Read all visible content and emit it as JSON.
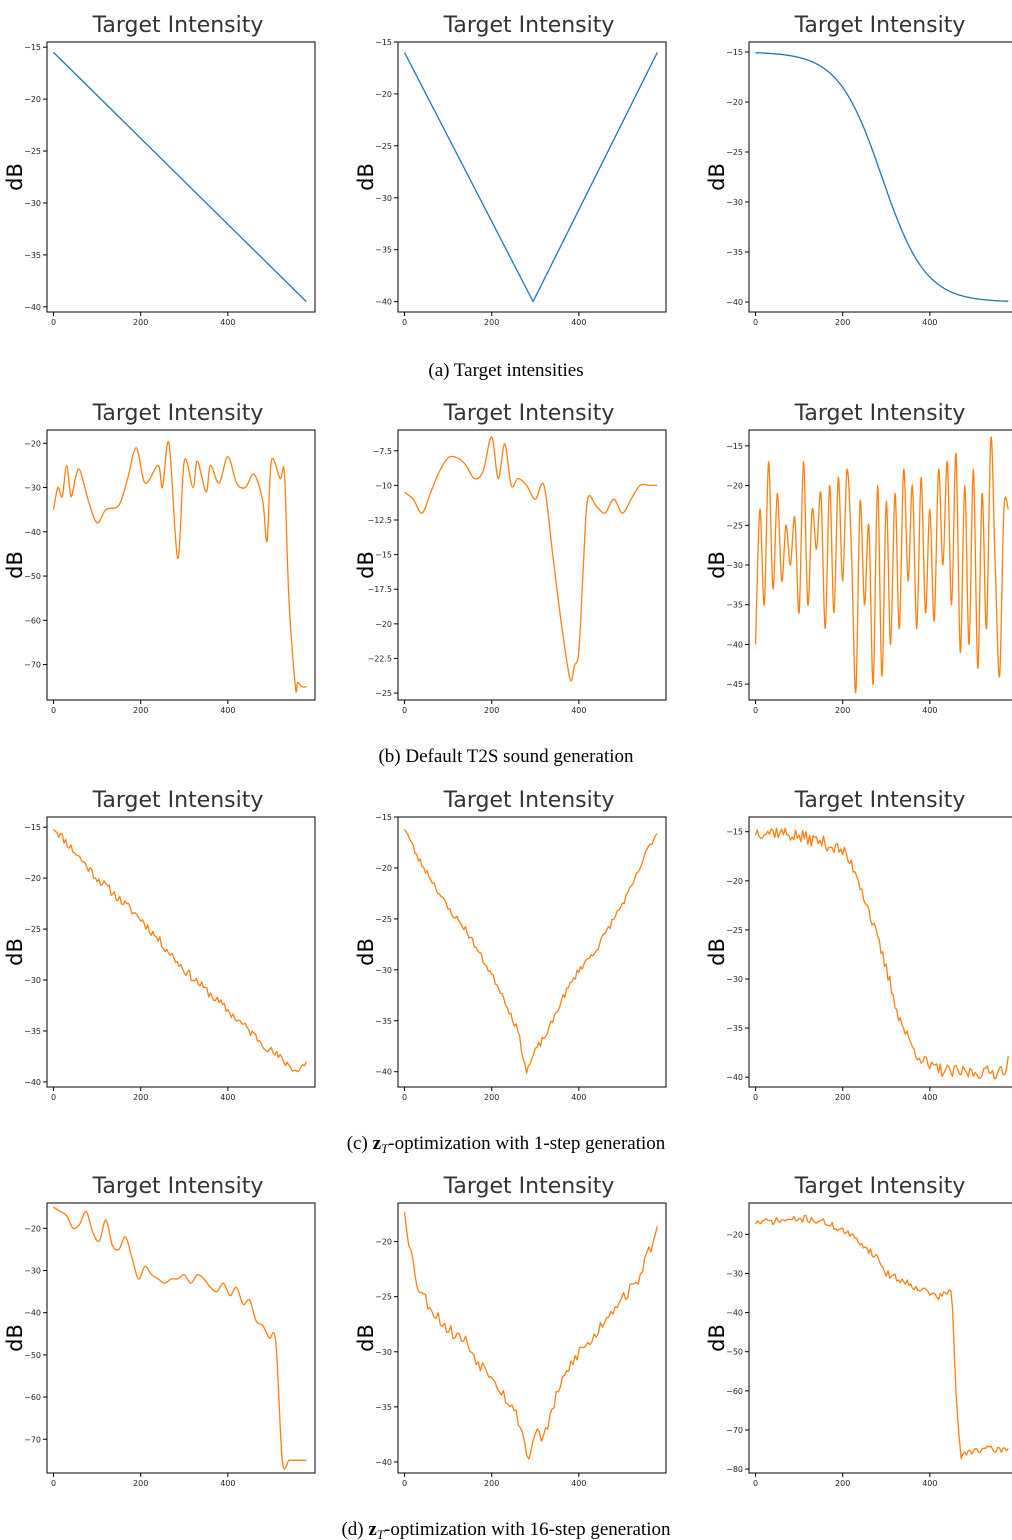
{
  "colors": {
    "target": "#1f77b4",
    "generated": "#ff7f0e"
  },
  "captions": [
    {
      "text": "(a) Target intensities"
    },
    {
      "text": "(b) Default T2S sound generation"
    },
    {
      "prefix": "(c) ",
      "sym": "z",
      "sub": "T",
      "rest": "-optimization with 1-step generation"
    },
    {
      "prefix": "(d) ",
      "sym": "z",
      "sub": "T",
      "rest": "-optimization with 16-step generation"
    }
  ],
  "chart_data": [
    {
      "type": "line",
      "row": 0,
      "col": 0,
      "title": "Target Intensity",
      "ylabel": "dB",
      "xlim": [
        -15,
        600
      ],
      "ylim": [
        -40.5,
        -14.5
      ],
      "xticks": [
        0,
        200,
        400
      ],
      "yticks": [
        -15,
        -20,
        -25,
        -30,
        -35,
        -40
      ],
      "series": [
        {
          "color_key": "target",
          "shape": "linear",
          "x": [
            0,
            580
          ],
          "y": [
            -15.5,
            -39.5
          ]
        }
      ]
    },
    {
      "type": "line",
      "row": 0,
      "col": 1,
      "title": "Target Intensity",
      "ylabel": "dB",
      "xlim": [
        -15,
        600
      ],
      "ylim": [
        -41,
        -15
      ],
      "xticks": [
        0,
        200,
        400
      ],
      "yticks": [
        -15,
        -20,
        -25,
        -30,
        -35,
        -40
      ],
      "series": [
        {
          "color_key": "target",
          "shape": "linear",
          "x": [
            0,
            295,
            580
          ],
          "y": [
            -16,
            -40,
            -16
          ]
        }
      ]
    },
    {
      "type": "line",
      "row": 0,
      "col": 2,
      "title": "Target Intensity",
      "ylabel": "dB",
      "xlim": [
        -15,
        600
      ],
      "ylim": [
        -41,
        -14
      ],
      "xticks": [
        0,
        200,
        400
      ],
      "yticks": [
        -15,
        -20,
        -25,
        -30,
        -35,
        -40
      ],
      "series": [
        {
          "color_key": "target",
          "shape": "sigmoid",
          "x0": 0,
          "x1": 580,
          "xmid": 290,
          "scale": 50,
          "ytop": -15,
          "ybottom": -40
        }
      ]
    },
    {
      "type": "line",
      "row": 1,
      "col": 0,
      "title": "Target Intensity",
      "ylabel": "dB",
      "xlim": [
        -15,
        600
      ],
      "ylim": [
        -78,
        -17
      ],
      "xticks": [
        0,
        200,
        400
      ],
      "yticks": [
        -20,
        -30,
        -40,
        -50,
        -60,
        -70
      ],
      "series": [
        {
          "color_key": "generated",
          "shape": "smooth",
          "x": [
            0,
            10,
            20,
            30,
            40,
            50,
            60,
            80,
            100,
            120,
            150,
            170,
            190,
            210,
            240,
            250,
            265,
            285,
            300,
            320,
            330,
            350,
            360,
            380,
            400,
            420,
            440,
            460,
            480,
            490,
            500,
            520,
            530,
            540,
            555,
            560,
            570,
            580
          ],
          "y": [
            -35,
            -30,
            -32,
            -25,
            -32,
            -28,
            -26,
            -33,
            -38,
            -35,
            -34,
            -28,
            -21,
            -29,
            -25,
            -30,
            -20,
            -46,
            -24,
            -30,
            -24,
            -31,
            -25,
            -29,
            -23,
            -29,
            -30,
            -27,
            -33,
            -42,
            -24,
            -28,
            -27,
            -55,
            -75,
            -74,
            -75,
            -75
          ]
        }
      ]
    },
    {
      "type": "line",
      "row": 1,
      "col": 1,
      "title": "Target Intensity",
      "ylabel": "dB",
      "xlim": [
        -15,
        600
      ],
      "ylim": [
        -25.5,
        -6
      ],
      "xticks": [
        0,
        200,
        400
      ],
      "yticks": [
        -7.5,
        -10,
        -12.5,
        -15,
        -17.5,
        -20,
        -22.5,
        -25
      ],
      "series": [
        {
          "color_key": "generated",
          "shape": "smooth",
          "x": [
            0,
            20,
            40,
            60,
            80,
            100,
            120,
            140,
            160,
            180,
            200,
            215,
            230,
            245,
            260,
            280,
            300,
            320,
            340,
            360,
            380,
            390,
            400,
            410,
            420,
            440,
            460,
            480,
            500,
            520,
            540,
            560,
            580
          ],
          "y": [
            -10.5,
            -11,
            -12,
            -10.5,
            -9,
            -8,
            -8,
            -8.5,
            -9.5,
            -9,
            -6.5,
            -9.5,
            -7,
            -10,
            -9.5,
            -10,
            -11,
            -10,
            -15,
            -20,
            -24,
            -23,
            -22,
            -16,
            -11,
            -11.5,
            -12,
            -11,
            -12,
            -11,
            -10,
            -10,
            -10
          ]
        }
      ]
    },
    {
      "type": "line",
      "row": 1,
      "col": 2,
      "title": "Target Intensity",
      "ylabel": "dB",
      "xlim": [
        -15,
        600
      ],
      "ylim": [
        -47,
        -13
      ],
      "xticks": [
        0,
        200,
        400
      ],
      "yticks": [
        -15,
        -20,
        -25,
        -30,
        -35,
        -40,
        -45
      ],
      "series": [
        {
          "color_key": "generated",
          "shape": "smooth",
          "x": [
            0,
            10,
            20,
            30,
            40,
            50,
            60,
            70,
            80,
            90,
            100,
            110,
            120,
            130,
            140,
            150,
            160,
            170,
            180,
            190,
            200,
            210,
            220,
            230,
            240,
            250,
            260,
            270,
            280,
            290,
            300,
            310,
            320,
            330,
            340,
            350,
            360,
            370,
            380,
            390,
            400,
            410,
            420,
            430,
            440,
            450,
            460,
            470,
            480,
            490,
            500,
            510,
            520,
            530,
            540,
            550,
            560,
            570,
            580
          ],
          "y": [
            -40,
            -23,
            -35,
            -17,
            -33,
            -21,
            -32,
            -25,
            -30,
            -24,
            -36,
            -17,
            -35,
            -23,
            -28,
            -21,
            -38,
            -20,
            -36,
            -19,
            -32,
            -18,
            -28,
            -46,
            -22,
            -35,
            -25,
            -45,
            -20,
            -44,
            -22,
            -40,
            -21,
            -38,
            -18,
            -32,
            -20,
            -38,
            -19,
            -36,
            -23,
            -37,
            -18,
            -30,
            -17,
            -35,
            -16,
            -41,
            -20,
            -40,
            -18,
            -43,
            -21,
            -38,
            -14,
            -30,
            -44,
            -23,
            -23
          ]
        }
      ]
    },
    {
      "type": "line",
      "row": 2,
      "col": 0,
      "title": "Target Intensity",
      "ylabel": "dB",
      "xlim": [
        -15,
        600
      ],
      "ylim": [
        -40.5,
        -14
      ],
      "xticks": [
        0,
        200,
        400
      ],
      "yticks": [
        -15,
        -20,
        -25,
        -30,
        -35,
        -40
      ],
      "series": [
        {
          "color_key": "generated",
          "shape": "noisy",
          "x0": 0,
          "x1": 580,
          "n": 145,
          "amp": 0.45,
          "seed": 11,
          "kx": [
            0,
            20,
            40,
            60,
            100,
            200,
            300,
            400,
            500,
            560,
            580
          ],
          "ky": [
            -15,
            -16,
            -17,
            -18,
            -20,
            -24,
            -29,
            -33,
            -37,
            -39,
            -38
          ]
        }
      ]
    },
    {
      "type": "line",
      "row": 2,
      "col": 1,
      "title": "Target Intensity",
      "ylabel": "dB",
      "xlim": [
        -15,
        600
      ],
      "ylim": [
        -41.5,
        -15
      ],
      "xticks": [
        0,
        200,
        400
      ],
      "yticks": [
        -15,
        -20,
        -25,
        -30,
        -35,
        -40
      ],
      "series": [
        {
          "color_key": "generated",
          "shape": "noisy",
          "x0": 0,
          "x1": 580,
          "n": 145,
          "amp": 0.35,
          "seed": 23,
          "kx": [
            0,
            30,
            60,
            100,
            140,
            180,
            220,
            260,
            280,
            300,
            330,
            360,
            400,
            440,
            480,
            520,
            560,
            580
          ],
          "ky": [
            -16,
            -19,
            -21,
            -24,
            -26,
            -29,
            -32,
            -36,
            -40,
            -38,
            -36,
            -33,
            -30,
            -28,
            -25,
            -22,
            -18,
            -16.5
          ]
        }
      ]
    },
    {
      "type": "line",
      "row": 2,
      "col": 2,
      "title": "Target Intensity",
      "ylabel": "dB",
      "xlim": [
        -15,
        600
      ],
      "ylim": [
        -41,
        -13.5
      ],
      "xticks": [
        0,
        200,
        400
      ],
      "yticks": [
        -15,
        -20,
        -25,
        -30,
        -35,
        -40
      ],
      "series": [
        {
          "color_key": "generated",
          "shape": "noisy",
          "x0": 0,
          "x1": 580,
          "n": 145,
          "amp": 0.7,
          "seed": 37,
          "kx": [
            0,
            50,
            100,
            150,
            200,
            230,
            260,
            300,
            330,
            360,
            400,
            450,
            500,
            550,
            575,
            580
          ],
          "ky": [
            -15,
            -15,
            -15.5,
            -16,
            -17,
            -19,
            -23,
            -29,
            -34,
            -37,
            -39,
            -39.5,
            -39.5,
            -39.5,
            -39,
            -38
          ]
        }
      ]
    },
    {
      "type": "line",
      "row": 3,
      "col": 0,
      "title": "Target Intensity",
      "ylabel": "dB",
      "xlim": [
        -15,
        600
      ],
      "ylim": [
        -78,
        -14
      ],
      "xticks": [
        0,
        200,
        400
      ],
      "yticks": [
        -20,
        -30,
        -40,
        -50,
        -60,
        -70
      ],
      "series": [
        {
          "color_key": "generated",
          "shape": "smooth",
          "x": [
            0,
            15,
            30,
            45,
            60,
            75,
            90,
            105,
            120,
            135,
            150,
            165,
            180,
            195,
            210,
            225,
            240,
            255,
            270,
            285,
            300,
            315,
            330,
            345,
            360,
            375,
            390,
            405,
            420,
            435,
            450,
            465,
            480,
            495,
            510,
            525,
            540,
            550,
            560,
            570,
            580
          ],
          "y": [
            -15,
            -16,
            -17,
            -20,
            -19,
            -16,
            -21,
            -23,
            -18,
            -24,
            -25,
            -22,
            -27,
            -32,
            -29,
            -31,
            -32,
            -33,
            -32,
            -32,
            -31,
            -33,
            -31,
            -32,
            -34,
            -35,
            -33,
            -36,
            -34,
            -38,
            -37,
            -42,
            -43,
            -46,
            -47,
            -75,
            -75,
            -75,
            -75,
            -75,
            -75
          ]
        }
      ]
    },
    {
      "type": "line",
      "row": 3,
      "col": 1,
      "title": "Target Intensity",
      "ylabel": "dB",
      "xlim": [
        -15,
        600
      ],
      "ylim": [
        -41,
        -16.5
      ],
      "xticks": [
        0,
        200,
        400
      ],
      "yticks": [
        -20,
        -25,
        -30,
        -35,
        -40
      ],
      "series": [
        {
          "color_key": "generated",
          "shape": "noisy",
          "x0": 0,
          "x1": 580,
          "n": 120,
          "amp": 0.6,
          "seed": 53,
          "kx": [
            0,
            10,
            30,
            60,
            100,
            140,
            170,
            200,
            230,
            260,
            275,
            285,
            300,
            320,
            340,
            370,
            400,
            430,
            460,
            500,
            530,
            560,
            580
          ],
          "ky": [
            -17,
            -20,
            -24,
            -26,
            -28,
            -29,
            -31,
            -32,
            -34,
            -36,
            -38,
            -40,
            -37,
            -38,
            -35,
            -32,
            -30,
            -29,
            -27,
            -25,
            -24,
            -21,
            -19
          ]
        }
      ]
    },
    {
      "type": "line",
      "row": 3,
      "col": 2,
      "title": "Target Intensity",
      "ylabel": "dB",
      "xlim": [
        -15,
        600
      ],
      "ylim": [
        -81,
        -12
      ],
      "xticks": [
        0,
        200,
        400
      ],
      "yticks": [
        -20,
        -30,
        -40,
        -50,
        -60,
        -70,
        -80
      ],
      "series": [
        {
          "color_key": "generated",
          "shape": "noisy",
          "x0": 0,
          "x1": 580,
          "n": 145,
          "amp": 0.9,
          "seed": 71,
          "kx": [
            0,
            60,
            120,
            160,
            200,
            240,
            280,
            300,
            340,
            380,
            420,
            440,
            450,
            460,
            470,
            500,
            580
          ],
          "ky": [
            -17,
            -16.5,
            -16,
            -17,
            -19,
            -22,
            -26,
            -30,
            -32,
            -34,
            -36,
            -35,
            -34,
            -60,
            -77,
            -75,
            -75
          ]
        }
      ]
    }
  ]
}
